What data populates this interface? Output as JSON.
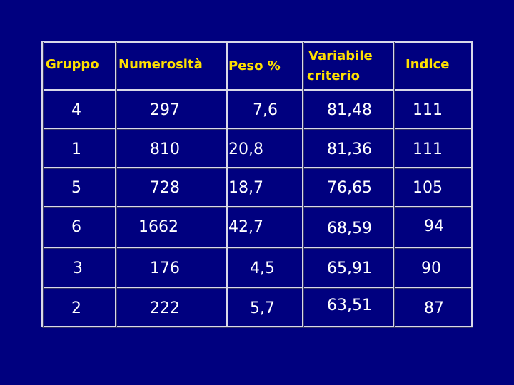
{
  "table": {
    "headers": [
      "Gruppo",
      "Numerosità",
      "Peso %",
      "Variabile\ncriterio",
      "Indice"
    ],
    "header_lines": {
      "col0": "Gruppo",
      "col1": "Numerosità",
      "col2": "Peso %",
      "col3_line1": "Variabile",
      "col3_line2": "criterio",
      "col4": "Indice"
    },
    "rows": [
      [
        "4",
        "297",
        "7,6",
        "81,48",
        "111"
      ],
      [
        "1",
        "810",
        "20,8",
        "81,36",
        "111"
      ],
      [
        "5",
        "728",
        "18,7",
        "76,65",
        "105"
      ],
      [
        "6",
        "1662",
        "42,7",
        "68,59",
        "94"
      ],
      [
        "3",
        "176",
        "4,5",
        "65,91",
        "90"
      ],
      [
        "2",
        "222",
        "5,7",
        "63,51",
        "87"
      ]
    ]
  },
  "colors": {
    "background": "#00007f",
    "header_text": "#ffe000",
    "cell_text": "#ffffff",
    "grid": "#d8d8e8"
  }
}
